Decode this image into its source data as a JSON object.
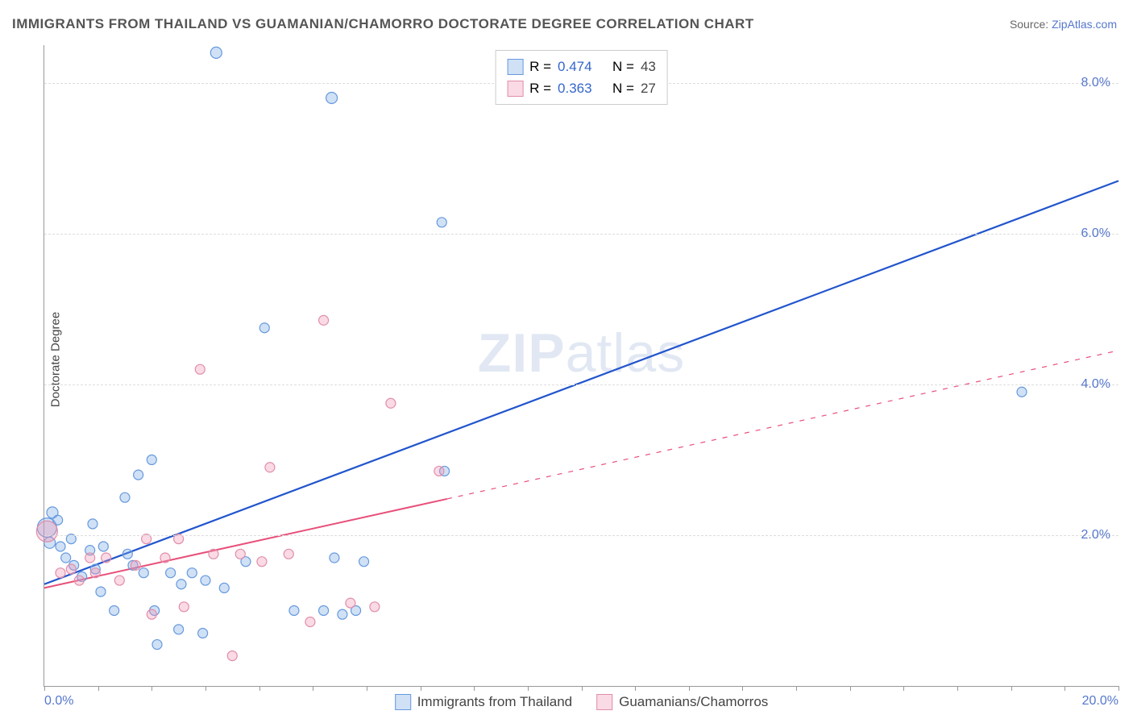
{
  "title": "IMMIGRANTS FROM THAILAND VS GUAMANIAN/CHAMORRO DOCTORATE DEGREE CORRELATION CHART",
  "source_label": "Source: ",
  "source_link": "ZipAtlas.com",
  "ylabel": "Doctorate Degree",
  "watermark_bold": "ZIP",
  "watermark_light": "atlas",
  "chart": {
    "xlim": [
      0,
      20
    ],
    "ylim": [
      0,
      8.5
    ],
    "ytick_values": [
      2.0,
      4.0,
      6.0,
      8.0
    ],
    "ytick_labels": [
      "2.0%",
      "4.0%",
      "6.0%",
      "8.0%"
    ],
    "xtick_values": [
      0,
      20
    ],
    "xtick_labels": [
      "0.0%",
      "20.0%"
    ],
    "xtick_minor_count": 20,
    "background_color": "#ffffff",
    "grid_color": "#dddddd",
    "axis_color": "#999999"
  },
  "series": [
    {
      "name": "Immigrants from Thailand",
      "color_fill": "rgba(120,170,230,0.35)",
      "color_stroke": "#6699dd",
      "line_color": "#2255cc",
      "line_width": 2.2,
      "r_value": "0.474",
      "n_value": "43",
      "regression": {
        "x1": 0,
        "y1": 1.35,
        "x2": 20,
        "y2": 6.7,
        "dash_from_x": 20
      },
      "points": [
        {
          "x": 0.05,
          "y": 2.1,
          "r": 12
        },
        {
          "x": 0.15,
          "y": 2.3,
          "r": 7
        },
        {
          "x": 0.1,
          "y": 1.9,
          "r": 7
        },
        {
          "x": 0.25,
          "y": 2.2,
          "r": 6
        },
        {
          "x": 0.3,
          "y": 1.85,
          "r": 6
        },
        {
          "x": 0.4,
          "y": 1.7,
          "r": 6
        },
        {
          "x": 0.5,
          "y": 1.95,
          "r": 6
        },
        {
          "x": 0.55,
          "y": 1.6,
          "r": 6
        },
        {
          "x": 0.7,
          "y": 1.45,
          "r": 6
        },
        {
          "x": 0.85,
          "y": 1.8,
          "r": 6
        },
        {
          "x": 0.95,
          "y": 1.55,
          "r": 6
        },
        {
          "x": 1.05,
          "y": 1.25,
          "r": 6
        },
        {
          "x": 1.1,
          "y": 1.85,
          "r": 6
        },
        {
          "x": 1.3,
          "y": 1.0,
          "r": 6
        },
        {
          "x": 1.5,
          "y": 2.5,
          "r": 6
        },
        {
          "x": 1.55,
          "y": 1.75,
          "r": 6
        },
        {
          "x": 1.65,
          "y": 1.6,
          "r": 6
        },
        {
          "x": 1.85,
          "y": 1.5,
          "r": 6
        },
        {
          "x": 2.0,
          "y": 3.0,
          "r": 6
        },
        {
          "x": 2.05,
          "y": 1.0,
          "r": 6
        },
        {
          "x": 2.1,
          "y": 0.55,
          "r": 6
        },
        {
          "x": 2.35,
          "y": 1.5,
          "r": 6
        },
        {
          "x": 2.5,
          "y": 0.75,
          "r": 6
        },
        {
          "x": 2.55,
          "y": 1.35,
          "r": 6
        },
        {
          "x": 2.75,
          "y": 1.5,
          "r": 6
        },
        {
          "x": 2.95,
          "y": 0.7,
          "r": 6
        },
        {
          "x": 3.0,
          "y": 1.4,
          "r": 6
        },
        {
          "x": 3.2,
          "y": 8.4,
          "r": 7
        },
        {
          "x": 3.35,
          "y": 1.3,
          "r": 6
        },
        {
          "x": 3.75,
          "y": 1.65,
          "r": 6
        },
        {
          "x": 4.1,
          "y": 4.75,
          "r": 6
        },
        {
          "x": 4.65,
          "y": 1.0,
          "r": 6
        },
        {
          "x": 5.2,
          "y": 1.0,
          "r": 6
        },
        {
          "x": 5.35,
          "y": 7.8,
          "r": 7
        },
        {
          "x": 5.4,
          "y": 1.7,
          "r": 6
        },
        {
          "x": 5.55,
          "y": 0.95,
          "r": 6
        },
        {
          "x": 5.8,
          "y": 1.0,
          "r": 6
        },
        {
          "x": 5.95,
          "y": 1.65,
          "r": 6
        },
        {
          "x": 7.4,
          "y": 6.15,
          "r": 6
        },
        {
          "x": 7.45,
          "y": 2.85,
          "r": 6
        },
        {
          "x": 18.2,
          "y": 3.9,
          "r": 6
        },
        {
          "x": 0.9,
          "y": 2.15,
          "r": 6
        },
        {
          "x": 1.75,
          "y": 2.8,
          "r": 6
        }
      ]
    },
    {
      "name": "Guamanians/Chamorros",
      "color_fill": "rgba(240,150,180,0.35)",
      "color_stroke": "#e08ea8",
      "line_color": "#e84f7a",
      "line_width": 2.0,
      "r_value": "0.363",
      "n_value": "27",
      "regression": {
        "x1": 0,
        "y1": 1.3,
        "x2": 20,
        "y2": 4.45,
        "dash_from_x": 7.5
      },
      "points": [
        {
          "x": 0.05,
          "y": 2.05,
          "r": 13
        },
        {
          "x": 0.3,
          "y": 1.5,
          "r": 6
        },
        {
          "x": 0.5,
          "y": 1.55,
          "r": 6
        },
        {
          "x": 0.65,
          "y": 1.4,
          "r": 6
        },
        {
          "x": 0.85,
          "y": 1.7,
          "r": 6
        },
        {
          "x": 0.95,
          "y": 1.5,
          "r": 6
        },
        {
          "x": 1.15,
          "y": 1.7,
          "r": 6
        },
        {
          "x": 1.4,
          "y": 1.4,
          "r": 6
        },
        {
          "x": 1.7,
          "y": 1.6,
          "r": 6
        },
        {
          "x": 1.9,
          "y": 1.95,
          "r": 6
        },
        {
          "x": 2.25,
          "y": 1.7,
          "r": 6
        },
        {
          "x": 2.5,
          "y": 1.95,
          "r": 6
        },
        {
          "x": 2.6,
          "y": 1.05,
          "r": 6
        },
        {
          "x": 2.9,
          "y": 4.2,
          "r": 6
        },
        {
          "x": 3.15,
          "y": 1.75,
          "r": 6
        },
        {
          "x": 3.5,
          "y": 0.4,
          "r": 6
        },
        {
          "x": 3.65,
          "y": 1.75,
          "r": 6
        },
        {
          "x": 4.05,
          "y": 1.65,
          "r": 6
        },
        {
          "x": 4.2,
          "y": 2.9,
          "r": 6
        },
        {
          "x": 4.55,
          "y": 1.75,
          "r": 6
        },
        {
          "x": 4.95,
          "y": 0.85,
          "r": 6
        },
        {
          "x": 5.2,
          "y": 4.85,
          "r": 6
        },
        {
          "x": 5.7,
          "y": 1.1,
          "r": 6
        },
        {
          "x": 6.15,
          "y": 1.05,
          "r": 6
        },
        {
          "x": 6.45,
          "y": 3.75,
          "r": 6
        },
        {
          "x": 7.35,
          "y": 2.85,
          "r": 6
        },
        {
          "x": 2.0,
          "y": 0.95,
          "r": 6
        }
      ]
    }
  ],
  "legend_top": {
    "r_label": "R =",
    "n_label": "N ="
  }
}
